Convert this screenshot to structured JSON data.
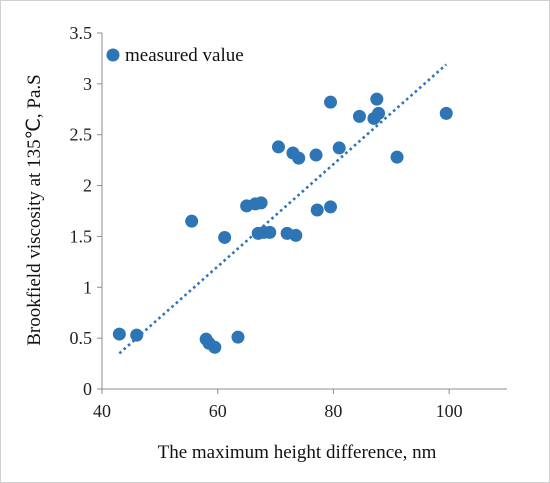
{
  "chart_data": {
    "type": "scatter",
    "xlabel": "The maximum height difference, nm",
    "ylabel": "Brookfield viscosity at 135℃, Pa.S",
    "xlim": [
      40,
      110
    ],
    "ylim": [
      0,
      3.5
    ],
    "x_ticks": [
      "40",
      "60",
      "80",
      "100"
    ],
    "y_ticks": [
      "0",
      "0.5",
      "1",
      "1.5",
      "2",
      "2.5",
      "3",
      "3.5"
    ],
    "grid": false,
    "legend_position": "top-left",
    "series": [
      {
        "name": "measured value",
        "color": "#2E75B6",
        "marker": "circle",
        "points": [
          [
            43.0,
            0.54
          ],
          [
            46.0,
            0.53
          ],
          [
            55.5,
            1.65
          ],
          [
            58.0,
            0.49
          ],
          [
            58.5,
            0.45
          ],
          [
            59.5,
            0.41
          ],
          [
            61.2,
            1.49
          ],
          [
            63.5,
            0.51
          ],
          [
            65.0,
            1.8
          ],
          [
            66.5,
            1.82
          ],
          [
            67.5,
            1.83
          ],
          [
            67.0,
            1.53
          ],
          [
            68.0,
            1.54
          ],
          [
            69.0,
            1.54
          ],
          [
            70.5,
            2.38
          ],
          [
            72.0,
            1.53
          ],
          [
            73.0,
            2.32
          ],
          [
            73.5,
            1.51
          ],
          [
            74.0,
            2.27
          ],
          [
            77.0,
            2.3
          ],
          [
            77.2,
            1.76
          ],
          [
            79.5,
            2.82
          ],
          [
            79.5,
            1.79
          ],
          [
            81.0,
            2.37
          ],
          [
            84.5,
            2.68
          ],
          [
            87.0,
            2.66
          ],
          [
            87.5,
            2.85
          ],
          [
            87.8,
            2.71
          ],
          [
            91.0,
            2.28
          ],
          [
            99.5,
            2.71
          ]
        ]
      }
    ],
    "trendline": {
      "type": "linear",
      "style": "dotted",
      "color": "#2E75B6",
      "x_range": [
        43,
        99.5
      ],
      "y_range": [
        0.35,
        3.19
      ]
    }
  }
}
